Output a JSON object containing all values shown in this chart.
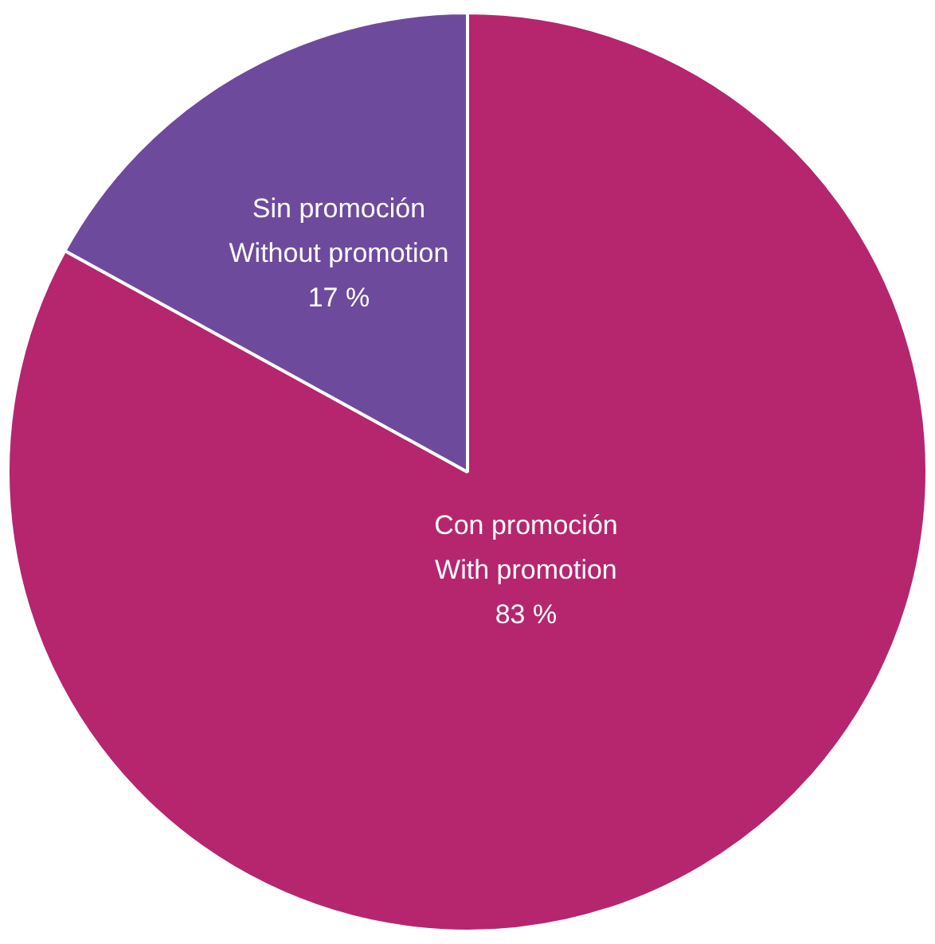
{
  "chart_data": {
    "type": "pie",
    "categories": [
      "Con promoción\nWith promotion",
      "Sin promoción\nWithout promotion"
    ],
    "values": [
      83,
      17
    ],
    "colors": [
      "#b5266f",
      "#6e4a9c"
    ],
    "value_labels": [
      "83 %",
      "17 %"
    ],
    "legend": false
  }
}
